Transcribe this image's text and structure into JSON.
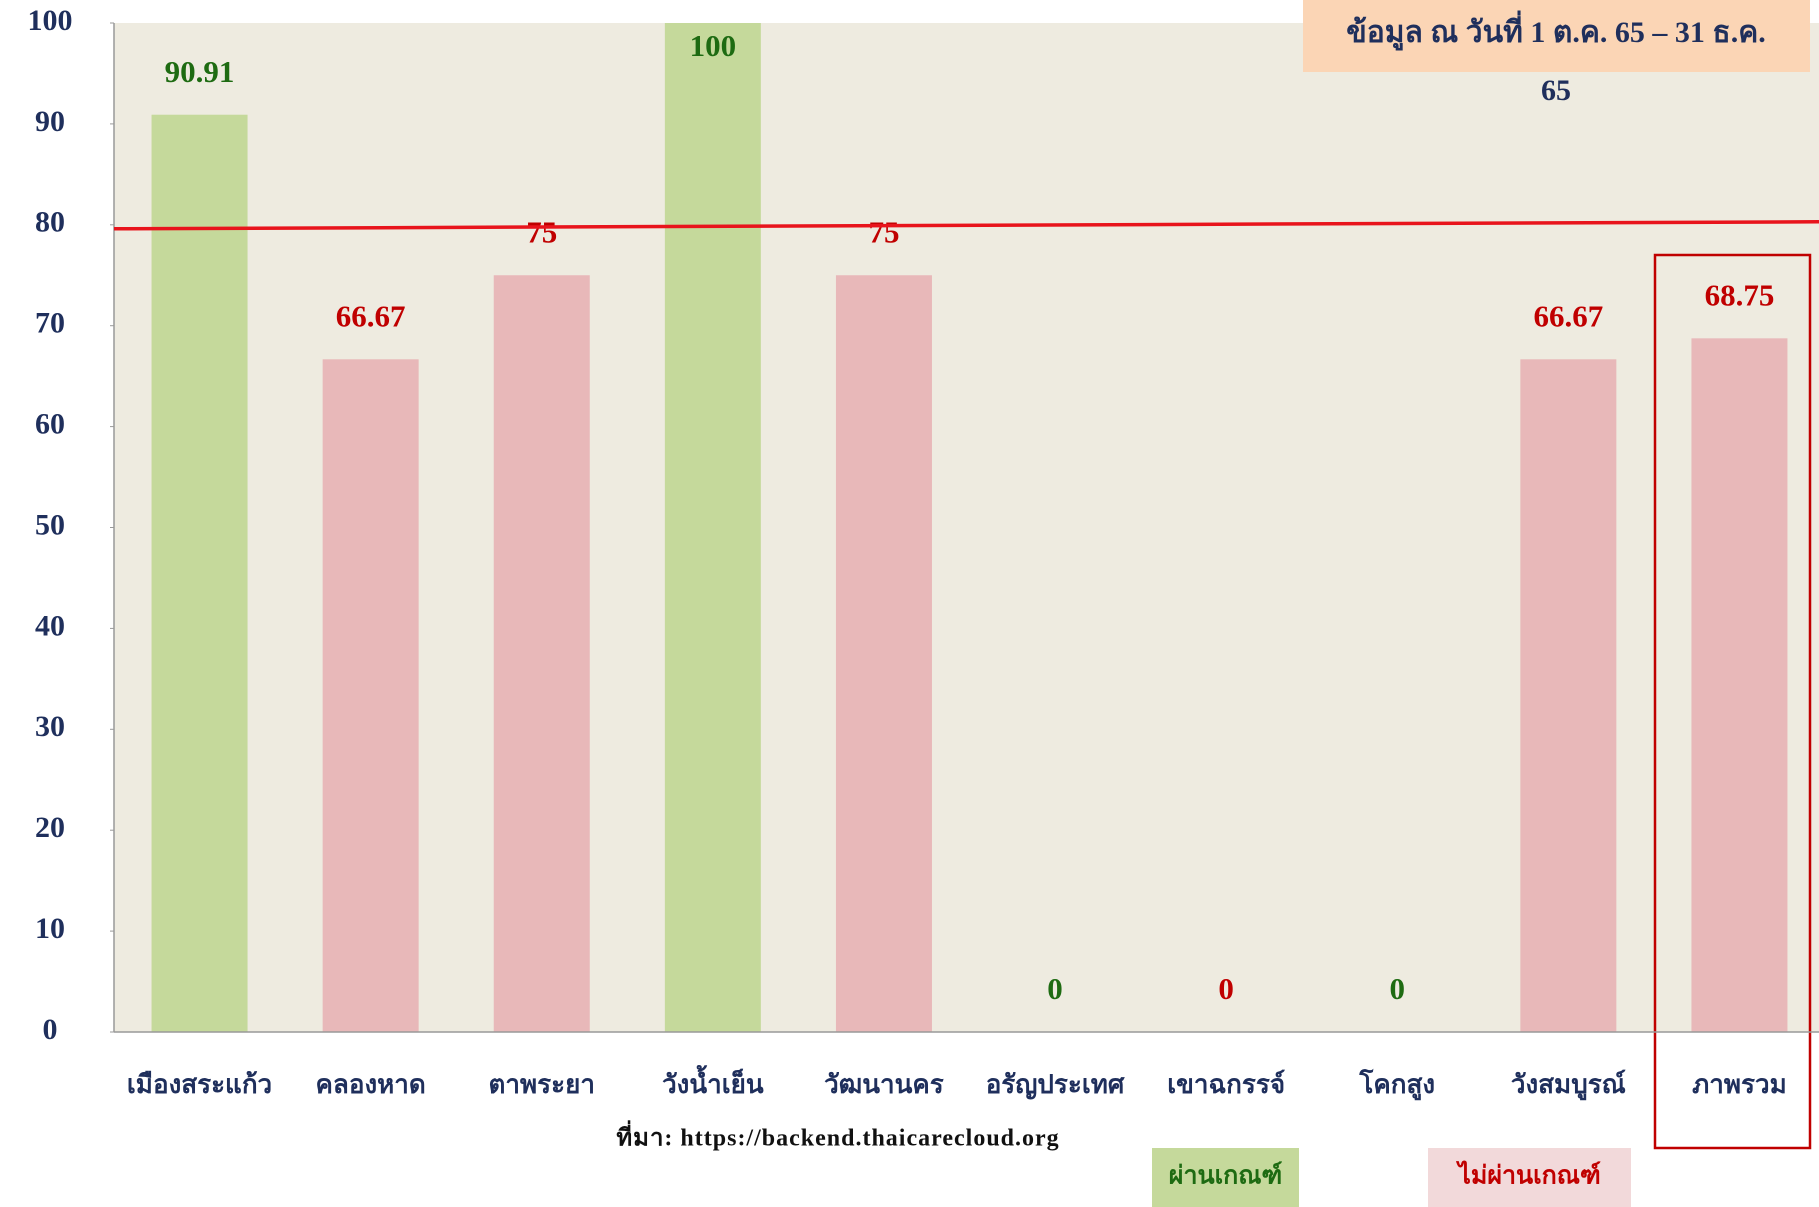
{
  "chart_data": {
    "type": "bar",
    "categories": [
      "เมืองสระแก้ว",
      "คลองหาด",
      "ตาพระยา",
      "วังน้ำเย็น",
      "วัฒนานคร",
      "อรัญประเทศ",
      "เขาฉกรรจ์",
      "โคกสูง",
      "วังสมบูรณ์",
      "ภาพรวม"
    ],
    "values": [
      90.91,
      66.67,
      75,
      100,
      75,
      0,
      0,
      0,
      66.67,
      68.75
    ],
    "colors": [
      "#c5d99b",
      "#e8b8b9",
      "#e8b8b9",
      "#c5d99b",
      "#e8b8b9",
      "#e8b8b9",
      "#e8b8b9",
      "#e8b8b9",
      "#e8b8b9",
      "#e8b8b9"
    ],
    "label_colors": [
      "#1e6b12",
      "#c00000",
      "#c00000",
      "#1e6b12",
      "#c00000",
      "#1e6b12",
      "#c00000",
      "#1e6b12",
      "#c00000",
      "#c00000"
    ],
    "ylim": [
      0,
      100
    ],
    "yticks": [
      0,
      10,
      20,
      30,
      40,
      50,
      60,
      70,
      80,
      90,
      100
    ],
    "target": 80,
    "target_color": "#e8141c",
    "annotation": [
      "ข้อมูล ณ วันที่ 1 ต.ค. 65 – 31 ธ.ค.",
      "65"
    ],
    "source": "ที่มา:  https://backend.thaicarecloud.org",
    "legend": [
      {
        "name": "ผ่านเกณฑ์",
        "color": "#c5d99b",
        "text_color": "#1e6b12"
      },
      {
        "name": "ไม่ผ่านเกณฑ์",
        "color": "#f2d9da",
        "text_color": "#c00000"
      }
    ]
  }
}
